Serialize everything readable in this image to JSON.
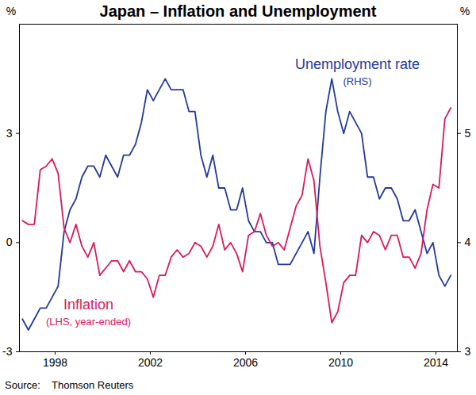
{
  "chart_data": {
    "type": "line",
    "title": "Japan – Inflation and Unemployment",
    "ylabel": "%",
    "y2label": "%",
    "caption": "Source:    Thomson Reuters",
    "xlim": [
      1996.5,
      2014.9
    ],
    "xticks": [
      1998,
      2002,
      2006,
      2010,
      2014
    ],
    "ylim": [
      -3,
      6
    ],
    "yticks": [
      -3,
      0,
      3
    ],
    "y2lim": [
      3,
      6
    ],
    "y2ticks": [
      3,
      4,
      5
    ],
    "grid": false,
    "x": [
      1996.625,
      1996.875,
      1997.125,
      1997.375,
      1997.625,
      1997.875,
      1998.125,
      1998.375,
      1998.625,
      1998.875,
      1999.125,
      1999.375,
      1999.625,
      1999.875,
      2000.125,
      2000.375,
      2000.625,
      2000.875,
      2001.125,
      2001.375,
      2001.625,
      2001.875,
      2002.125,
      2002.375,
      2002.625,
      2002.875,
      2003.125,
      2003.375,
      2003.625,
      2003.875,
      2004.125,
      2004.375,
      2004.625,
      2004.875,
      2005.125,
      2005.375,
      2005.625,
      2005.875,
      2006.125,
      2006.375,
      2006.625,
      2006.875,
      2007.125,
      2007.375,
      2007.625,
      2007.875,
      2008.125,
      2008.375,
      2008.625,
      2008.875,
      2009.125,
      2009.375,
      2009.625,
      2009.875,
      2010.125,
      2010.375,
      2010.625,
      2010.875,
      2011.125,
      2011.375,
      2011.625,
      2011.875,
      2012.125,
      2012.375,
      2012.625,
      2012.875,
      2013.125,
      2013.375,
      2013.625,
      2013.875,
      2014.125,
      2014.375,
      2014.625
    ],
    "series": [
      {
        "name": "Unemployment rate",
        "note": "(RHS)",
        "axis": "y2",
        "color": "#23399b",
        "values": [
          3.3,
          3.2,
          3.3,
          3.4,
          3.4,
          3.5,
          3.6,
          4.1,
          4.3,
          4.4,
          4.6,
          4.7,
          4.7,
          4.6,
          4.8,
          4.7,
          4.6,
          4.8,
          4.8,
          4.9,
          5.1,
          5.4,
          5.3,
          5.4,
          5.5,
          5.4,
          5.4,
          5.4,
          5.2,
          5.2,
          4.8,
          4.6,
          4.8,
          4.5,
          4.5,
          4.3,
          4.3,
          4.5,
          4.2,
          4.1,
          4.1,
          4.0,
          4.0,
          3.8,
          3.8,
          3.8,
          3.9,
          4.0,
          4.1,
          3.9,
          4.6,
          5.2,
          5.5,
          5.2,
          5.0,
          5.2,
          5.1,
          5.0,
          4.6,
          4.6,
          4.4,
          4.5,
          4.5,
          4.4,
          4.2,
          4.2,
          4.3,
          4.1,
          3.9,
          4.0,
          3.7,
          3.6,
          3.7
        ]
      },
      {
        "name": "Inflation",
        "note": "(LHS, year-ended)",
        "axis": "y",
        "color": "#d9195f",
        "values": [
          0.6,
          0.5,
          0.5,
          2.0,
          2.1,
          2.3,
          1.9,
          0.4,
          0.0,
          0.5,
          -0.1,
          -0.4,
          0.0,
          -0.9,
          -0.7,
          -0.5,
          -0.5,
          -0.8,
          -0.5,
          -0.8,
          -0.8,
          -1.0,
          -1.5,
          -0.9,
          -0.9,
          -0.4,
          -0.2,
          -0.4,
          -0.3,
          0.0,
          -0.1,
          -0.4,
          -0.1,
          0.5,
          -0.2,
          0.0,
          -0.3,
          -0.8,
          0.2,
          0.3,
          0.8,
          0.2,
          -0.1,
          0.0,
          -0.2,
          0.4,
          1.0,
          1.3,
          2.3,
          1.7,
          -0.1,
          -1.1,
          -2.2,
          -1.9,
          -1.1,
          -0.9,
          -0.9,
          0.2,
          0.0,
          0.3,
          0.2,
          -0.2,
          0.2,
          0.2,
          -0.4,
          -0.4,
          -0.7,
          -0.3,
          0.9,
          1.6,
          1.5,
          3.4,
          3.7
        ]
      }
    ]
  }
}
